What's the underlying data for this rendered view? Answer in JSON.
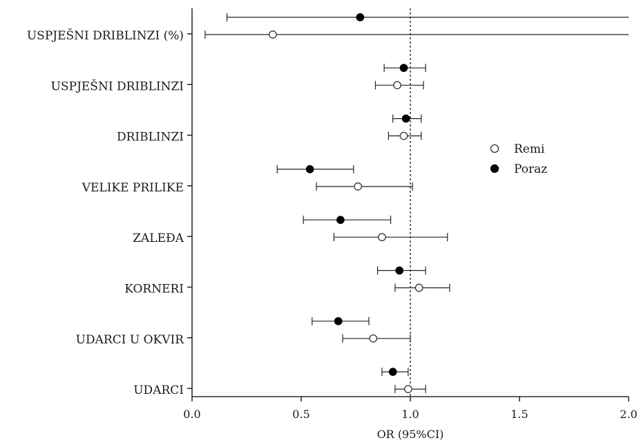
{
  "chart_data": {
    "type": "forest",
    "xlabel": "OR (95%CI)",
    "xlim": [
      0,
      2
    ],
    "xticks": [
      "0.0",
      "0.5",
      "1.0",
      "1.5",
      "2.0"
    ],
    "reference_line": 1.0,
    "legend": {
      "position": "right",
      "entries": [
        "Remi",
        "Poraz"
      ]
    },
    "categories": [
      "USPJEŠNI DRIBLINZI (%)",
      "USPJEŠNI DRIBLINZI",
      "DRIBLINZI",
      "VELIKE PRILIKE",
      "ZALEĐA",
      "KORNERI",
      "UDARCI U OKVIR",
      "UDARCI"
    ],
    "series": [
      {
        "name": "Poraz",
        "marker": "filled",
        "color": "#000000",
        "points": [
          {
            "or": 0.77,
            "lower": 0.16,
            "upper": 2.0
          },
          {
            "or": 0.97,
            "lower": 0.88,
            "upper": 1.07
          },
          {
            "or": 0.98,
            "lower": 0.92,
            "upper": 1.05
          },
          {
            "or": 0.54,
            "lower": 0.39,
            "upper": 0.74
          },
          {
            "or": 0.68,
            "lower": 0.51,
            "upper": 0.91
          },
          {
            "or": 0.95,
            "lower": 0.85,
            "upper": 1.07
          },
          {
            "or": 0.67,
            "lower": 0.55,
            "upper": 0.81
          },
          {
            "or": 0.92,
            "lower": 0.87,
            "upper": 0.99
          }
        ]
      },
      {
        "name": "Remi",
        "marker": "open",
        "color": "#333333",
        "points": [
          {
            "or": 0.37,
            "lower": 0.06,
            "upper": 2.0
          },
          {
            "or": 0.94,
            "lower": 0.84,
            "upper": 1.06
          },
          {
            "or": 0.97,
            "lower": 0.9,
            "upper": 1.05
          },
          {
            "or": 0.76,
            "lower": 0.57,
            "upper": 1.01
          },
          {
            "or": 0.87,
            "lower": 0.65,
            "upper": 1.17
          },
          {
            "or": 1.04,
            "lower": 0.93,
            "upper": 1.18
          },
          {
            "or": 0.83,
            "lower": 0.69,
            "upper": 1.0
          },
          {
            "or": 0.99,
            "lower": 0.93,
            "upper": 1.07
          }
        ]
      }
    ]
  }
}
